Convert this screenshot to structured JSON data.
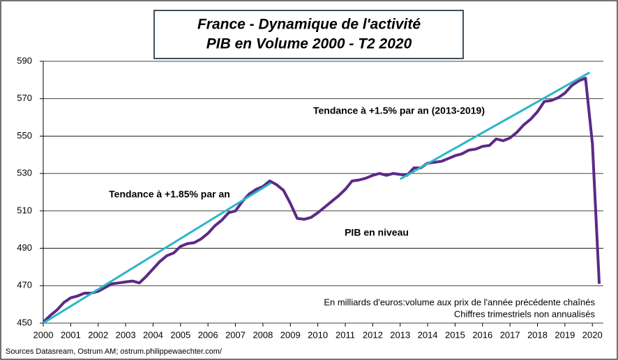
{
  "chart_data": {
    "type": "line",
    "title": "France - Dynamique de l'activité",
    "subtitle": "PIB en Volume 2000 - T2 2020",
    "notes": [
      "En milliards  d'euros:volume aux prix de l'année  précédente chaînés",
      "Chiffres trimestriels  non annualisés"
    ],
    "source": "Sources Datasream, Ostrum AM;  ostrum.philippewaechter.com/",
    "xlim": [
      2000,
      2020.4
    ],
    "xticks": [
      2000,
      2001,
      2002,
      2003,
      2004,
      2005,
      2006,
      2007,
      2008,
      2009,
      2010,
      2011,
      2012,
      2013,
      2014,
      2015,
      2016,
      2017,
      2018,
      2019,
      2020
    ],
    "ylim": [
      450,
      590
    ],
    "yticks": [
      450,
      470,
      490,
      510,
      530,
      550,
      570,
      590
    ],
    "grid": true,
    "series": [
      {
        "name": "PIB en niveau",
        "color": "#5b2a86",
        "x": [
          2000,
          2000.25,
          2000.5,
          2000.75,
          2001,
          2001.25,
          2001.5,
          2001.75,
          2002,
          2002.25,
          2002.5,
          2002.75,
          2003,
          2003.25,
          2003.5,
          2003.75,
          2004,
          2004.25,
          2004.5,
          2004.75,
          2005,
          2005.25,
          2005.5,
          2005.75,
          2006,
          2006.25,
          2006.5,
          2006.75,
          2007,
          2007.25,
          2007.5,
          2007.75,
          2008,
          2008.25,
          2008.5,
          2008.75,
          2009,
          2009.25,
          2009.5,
          2009.75,
          2010,
          2010.25,
          2010.5,
          2010.75,
          2011,
          2011.25,
          2011.5,
          2011.75,
          2012,
          2012.25,
          2012.5,
          2012.75,
          2013,
          2013.25,
          2013.5,
          2013.75,
          2014,
          2014.25,
          2014.5,
          2014.75,
          2015,
          2015.25,
          2015.5,
          2015.75,
          2016,
          2016.25,
          2016.5,
          2016.75,
          2017,
          2017.25,
          2017.5,
          2017.75,
          2018,
          2018.25,
          2018.5,
          2018.75,
          2019,
          2019.25,
          2019.5,
          2019.75,
          2020,
          2020.25
        ],
        "values": [
          450.5,
          454,
          457,
          461,
          463.5,
          464.5,
          466,
          466,
          467,
          469,
          471,
          471.5,
          472,
          472.5,
          471.5,
          475,
          479,
          483,
          486,
          487.5,
          491,
          492.5,
          493,
          495,
          498,
          502,
          505,
          509,
          510,
          515,
          519,
          521.5,
          523,
          526,
          524,
          521,
          514,
          506,
          505.5,
          506.5,
          509,
          512,
          515,
          518,
          521.5,
          526,
          526.5,
          527.5,
          529,
          530,
          529,
          530,
          529.5,
          529,
          533,
          533,
          535.5,
          536,
          536.5,
          538,
          539.5,
          540.5,
          542.5,
          543,
          544.5,
          545,
          548.5,
          547.5,
          549,
          552,
          556,
          559,
          563,
          568.5,
          569,
          570.5,
          573,
          577,
          579.5,
          581,
          546,
          471
        ]
      },
      {
        "name": "Tendance à +1.85% par an",
        "color": "#2ab7c8",
        "x": [
          2000,
          2008.3
        ],
        "values": [
          450,
          525
        ]
      },
      {
        "name": "Tendance à +1.5% par an (2013-2019)",
        "color": "#2ab7c8",
        "x": [
          2013,
          2019.9
        ],
        "values": [
          527,
          584
        ]
      }
    ]
  }
}
